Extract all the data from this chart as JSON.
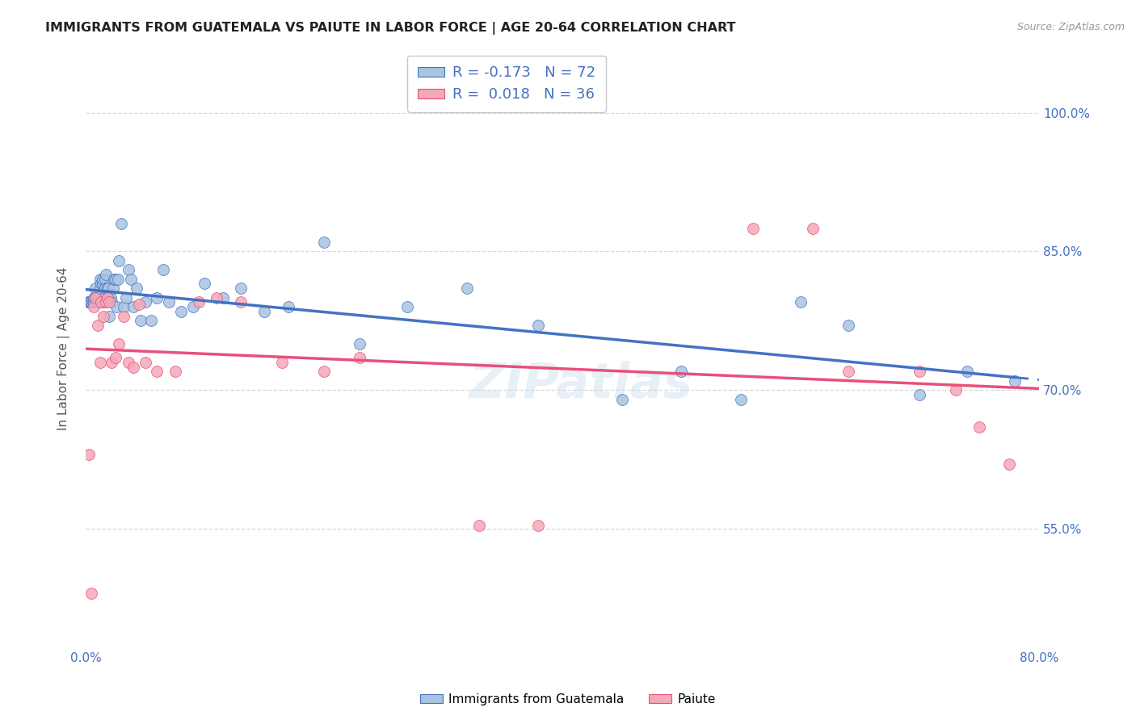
{
  "title": "IMMIGRANTS FROM GUATEMALA VS PAIUTE IN LABOR FORCE | AGE 20-64 CORRELATION CHART",
  "source": "Source: ZipAtlas.com",
  "ylabel": "In Labor Force | Age 20-64",
  "xlim": [
    0.0,
    0.8
  ],
  "ylim": [
    0.42,
    1.07
  ],
  "xticks": [
    0.0,
    0.1,
    0.2,
    0.3,
    0.4,
    0.5,
    0.6,
    0.7,
    0.8
  ],
  "xticklabels": [
    "0.0%",
    "",
    "",
    "",
    "",
    "",
    "",
    "",
    "80.0%"
  ],
  "yticks": [
    0.55,
    0.7,
    0.85,
    1.0
  ],
  "yticklabels": [
    "55.0%",
    "70.0%",
    "85.0%",
    "100.0%"
  ],
  "guatemala_color": "#a8c4e0",
  "paiute_color": "#f4a8b8",
  "guatemala_line_color": "#4472c4",
  "paiute_line_color": "#e8507a",
  "watermark": "ZIPatlas",
  "guatemala_x": [
    0.002,
    0.003,
    0.004,
    0.005,
    0.005,
    0.006,
    0.007,
    0.007,
    0.008,
    0.008,
    0.009,
    0.009,
    0.01,
    0.01,
    0.011,
    0.011,
    0.012,
    0.012,
    0.013,
    0.013,
    0.014,
    0.014,
    0.015,
    0.015,
    0.016,
    0.016,
    0.017,
    0.018,
    0.018,
    0.019,
    0.02,
    0.021,
    0.022,
    0.023,
    0.024,
    0.025,
    0.026,
    0.027,
    0.028,
    0.03,
    0.032,
    0.034,
    0.036,
    0.038,
    0.04,
    0.043,
    0.046,
    0.05,
    0.055,
    0.06,
    0.065,
    0.07,
    0.08,
    0.09,
    0.1,
    0.115,
    0.13,
    0.15,
    0.17,
    0.2,
    0.23,
    0.27,
    0.32,
    0.38,
    0.45,
    0.5,
    0.55,
    0.6,
    0.64,
    0.7,
    0.74,
    0.78
  ],
  "guatemala_y": [
    0.795,
    0.795,
    0.795,
    0.795,
    0.795,
    0.795,
    0.795,
    0.8,
    0.8,
    0.81,
    0.8,
    0.795,
    0.8,
    0.795,
    0.8,
    0.795,
    0.81,
    0.82,
    0.815,
    0.795,
    0.815,
    0.82,
    0.795,
    0.8,
    0.82,
    0.81,
    0.825,
    0.81,
    0.8,
    0.81,
    0.78,
    0.8,
    0.795,
    0.81,
    0.82,
    0.82,
    0.79,
    0.82,
    0.84,
    0.88,
    0.79,
    0.8,
    0.83,
    0.82,
    0.79,
    0.81,
    0.775,
    0.795,
    0.775,
    0.8,
    0.83,
    0.795,
    0.785,
    0.79,
    0.815,
    0.8,
    0.81,
    0.785,
    0.79,
    0.86,
    0.75,
    0.79,
    0.81,
    0.77,
    0.69,
    0.72,
    0.69,
    0.795,
    0.77,
    0.695,
    0.72,
    0.71
  ],
  "paiute_x": [
    0.003,
    0.005,
    0.007,
    0.008,
    0.01,
    0.012,
    0.013,
    0.015,
    0.017,
    0.018,
    0.02,
    0.022,
    0.025,
    0.028,
    0.032,
    0.036,
    0.04,
    0.045,
    0.05,
    0.06,
    0.075,
    0.095,
    0.11,
    0.13,
    0.165,
    0.2,
    0.23,
    0.33,
    0.38,
    0.56,
    0.61,
    0.64,
    0.7,
    0.73,
    0.75,
    0.775
  ],
  "paiute_y": [
    0.63,
    0.48,
    0.79,
    0.8,
    0.77,
    0.73,
    0.795,
    0.78,
    0.795,
    0.8,
    0.795,
    0.73,
    0.735,
    0.75,
    0.78,
    0.73,
    0.725,
    0.793,
    0.73,
    0.72,
    0.72,
    0.795,
    0.8,
    0.795,
    0.73,
    0.72,
    0.735,
    0.553,
    0.553,
    0.875,
    0.875,
    0.72,
    0.72,
    0.7,
    0.66,
    0.62
  ],
  "background_color": "#ffffff",
  "grid_color": "#d8d8d8",
  "title_color": "#222222",
  "axis_color": "#4472c4",
  "legend_border_color": "#bbbbbb"
}
